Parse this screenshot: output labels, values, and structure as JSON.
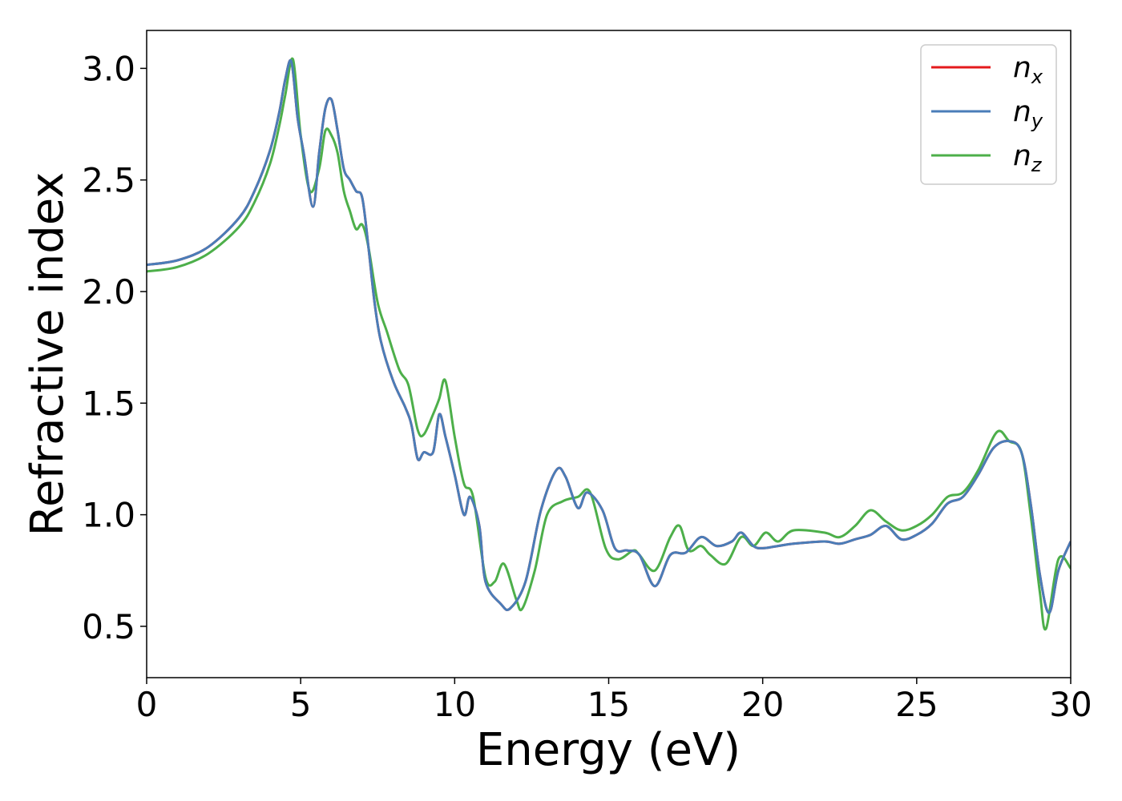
{
  "chart_data": {
    "type": "line",
    "title": "",
    "xlabel": "Energy (eV)",
    "ylabel": "Refractive index",
    "xlim": [
      0,
      30
    ],
    "ylim": [
      0.27,
      3.17
    ],
    "xticks": [
      0,
      5,
      10,
      15,
      20,
      25,
      30
    ],
    "xtick_labels": [
      "0",
      "5",
      "10",
      "15",
      "20",
      "25",
      "30"
    ],
    "yticks": [
      0.5,
      1.0,
      1.5,
      2.0,
      2.5,
      3.0
    ],
    "ytick_labels": [
      "0.5",
      "1.0",
      "1.5",
      "2.0",
      "2.5",
      "3.0"
    ],
    "grid": false,
    "legend_position": "top-right",
    "series": [
      {
        "name": "n",
        "sub": "x",
        "color": "#e41a1c",
        "x": [
          0,
          1,
          2,
          3,
          3.5,
          4,
          4.3,
          4.5,
          4.7,
          4.9,
          5.1,
          5.4,
          5.6,
          5.8,
          6.0,
          6.2,
          6.4,
          6.6,
          6.8,
          7.0,
          7.2,
          7.4,
          7.6,
          8.0,
          8.4,
          8.6,
          8.8,
          9.0,
          9.3,
          9.5,
          9.7,
          10.0,
          10.3,
          10.5,
          10.8,
          11.0,
          11.5,
          11.8,
          12.3,
          12.8,
          13.3,
          13.6,
          14.0,
          14.3,
          14.8,
          15.2,
          15.6,
          16.0,
          16.5,
          17.0,
          17.5,
          18.0,
          18.5,
          19.0,
          19.3,
          19.7,
          20.0,
          20.5,
          21.0,
          22.0,
          22.5,
          23.0,
          23.5,
          24.0,
          24.5,
          25.0,
          25.5,
          26.0,
          26.5,
          27.0,
          27.5,
          28.0,
          28.4,
          28.7,
          29.0,
          29.3,
          29.6,
          30.0
        ],
        "values": [
          2.12,
          2.14,
          2.2,
          2.33,
          2.45,
          2.63,
          2.8,
          2.95,
          3.03,
          2.78,
          2.62,
          2.38,
          2.62,
          2.82,
          2.86,
          2.72,
          2.55,
          2.5,
          2.45,
          2.42,
          2.2,
          1.95,
          1.78,
          1.6,
          1.48,
          1.4,
          1.25,
          1.28,
          1.28,
          1.45,
          1.35,
          1.18,
          1.0,
          1.08,
          0.95,
          0.7,
          0.6,
          0.58,
          0.7,
          1.02,
          1.2,
          1.17,
          1.03,
          1.1,
          1.02,
          0.85,
          0.84,
          0.82,
          0.68,
          0.82,
          0.83,
          0.9,
          0.86,
          0.88,
          0.92,
          0.86,
          0.85,
          0.86,
          0.87,
          0.88,
          0.87,
          0.89,
          0.91,
          0.95,
          0.89,
          0.91,
          0.96,
          1.05,
          1.08,
          1.18,
          1.3,
          1.33,
          1.28,
          1.05,
          0.73,
          0.56,
          0.75,
          0.88
        ]
      },
      {
        "name": "n",
        "sub": "y",
        "color": "#4a7db8",
        "x": [
          0,
          1,
          2,
          3,
          3.5,
          4,
          4.3,
          4.5,
          4.7,
          4.9,
          5.1,
          5.4,
          5.6,
          5.8,
          6.0,
          6.2,
          6.4,
          6.6,
          6.8,
          7.0,
          7.2,
          7.4,
          7.6,
          8.0,
          8.4,
          8.6,
          8.8,
          9.0,
          9.3,
          9.5,
          9.7,
          10.0,
          10.3,
          10.5,
          10.8,
          11.0,
          11.5,
          11.8,
          12.3,
          12.8,
          13.3,
          13.6,
          14.0,
          14.3,
          14.8,
          15.2,
          15.6,
          16.0,
          16.5,
          17.0,
          17.5,
          18.0,
          18.5,
          19.0,
          19.3,
          19.7,
          20.0,
          20.5,
          21.0,
          22.0,
          22.5,
          23.0,
          23.5,
          24.0,
          24.5,
          25.0,
          25.5,
          26.0,
          26.5,
          27.0,
          27.5,
          28.0,
          28.4,
          28.7,
          29.0,
          29.3,
          29.6,
          30.0
        ],
        "values": [
          2.12,
          2.14,
          2.2,
          2.33,
          2.45,
          2.63,
          2.8,
          2.95,
          3.03,
          2.78,
          2.62,
          2.38,
          2.62,
          2.82,
          2.86,
          2.72,
          2.55,
          2.5,
          2.45,
          2.42,
          2.2,
          1.95,
          1.78,
          1.6,
          1.48,
          1.4,
          1.25,
          1.28,
          1.28,
          1.45,
          1.35,
          1.18,
          1.0,
          1.08,
          0.95,
          0.7,
          0.6,
          0.58,
          0.7,
          1.02,
          1.2,
          1.17,
          1.03,
          1.1,
          1.02,
          0.85,
          0.84,
          0.82,
          0.68,
          0.82,
          0.83,
          0.9,
          0.86,
          0.88,
          0.92,
          0.86,
          0.85,
          0.86,
          0.87,
          0.88,
          0.87,
          0.89,
          0.91,
          0.95,
          0.89,
          0.91,
          0.96,
          1.05,
          1.08,
          1.18,
          1.3,
          1.33,
          1.28,
          1.05,
          0.73,
          0.56,
          0.75,
          0.88
        ]
      },
      {
        "name": "n",
        "sub": "z",
        "color": "#4daf4a",
        "x": [
          0,
          1,
          2,
          3,
          3.5,
          4,
          4.3,
          4.5,
          4.75,
          5.0,
          5.3,
          5.6,
          5.8,
          6.0,
          6.2,
          6.4,
          6.6,
          6.8,
          7.0,
          7.2,
          7.5,
          7.8,
          8.2,
          8.5,
          8.8,
          9.0,
          9.3,
          9.5,
          9.7,
          10.0,
          10.3,
          10.6,
          11.0,
          11.3,
          11.6,
          12.0,
          12.2,
          12.6,
          13.0,
          13.5,
          14.0,
          14.4,
          14.9,
          15.3,
          15.8,
          16.0,
          16.5,
          17.0,
          17.3,
          17.6,
          18.0,
          18.3,
          18.8,
          19.3,
          19.7,
          20.1,
          20.5,
          21.0,
          22.0,
          22.5,
          23.0,
          23.5,
          24.0,
          24.5,
          25.0,
          25.5,
          26.0,
          26.5,
          27.0,
          27.6,
          28.0,
          28.4,
          28.7,
          29.0,
          29.2,
          29.6,
          30.0
        ],
        "values": [
          2.09,
          2.11,
          2.17,
          2.29,
          2.4,
          2.57,
          2.74,
          2.88,
          3.04,
          2.7,
          2.45,
          2.55,
          2.72,
          2.7,
          2.62,
          2.45,
          2.36,
          2.28,
          2.3,
          2.2,
          1.95,
          1.82,
          1.65,
          1.58,
          1.38,
          1.36,
          1.45,
          1.52,
          1.6,
          1.35,
          1.14,
          1.08,
          0.72,
          0.7,
          0.78,
          0.62,
          0.58,
          0.75,
          1.0,
          1.06,
          1.08,
          1.1,
          0.85,
          0.8,
          0.84,
          0.82,
          0.75,
          0.9,
          0.95,
          0.84,
          0.86,
          0.82,
          0.78,
          0.9,
          0.86,
          0.92,
          0.88,
          0.93,
          0.92,
          0.9,
          0.95,
          1.02,
          0.97,
          0.93,
          0.95,
          1.0,
          1.08,
          1.1,
          1.2,
          1.37,
          1.33,
          1.28,
          1.0,
          0.65,
          0.49,
          0.8,
          0.76
        ]
      }
    ]
  }
}
